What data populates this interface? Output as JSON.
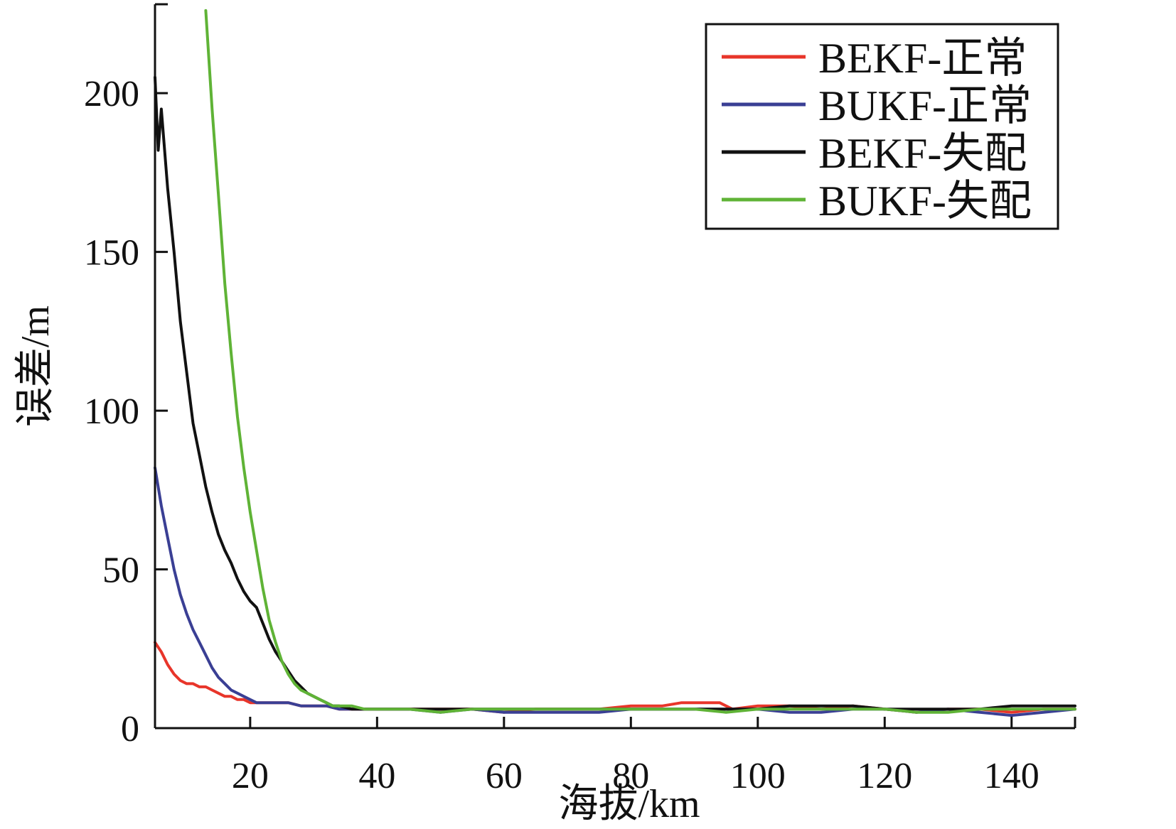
{
  "chart_data": {
    "type": "line",
    "title": "",
    "xlabel": "海拔/km",
    "ylabel": "误差/m",
    "xlim": [
      5,
      150
    ],
    "ylim": [
      0,
      228
    ],
    "x_ticks": [
      20,
      40,
      60,
      80,
      100,
      120,
      140
    ],
    "y_ticks": [
      0,
      50,
      100,
      150,
      200
    ],
    "grid": false,
    "legend_position": "top-right",
    "series": [
      {
        "name": "BEKF-正常",
        "color": "#e8352a",
        "x": [
          5,
          6,
          7,
          8,
          9,
          10,
          11,
          12,
          13,
          14,
          15,
          16,
          17,
          18,
          19,
          20,
          21,
          22,
          24,
          26,
          28,
          30,
          32,
          34,
          36,
          38,
          40,
          45,
          50,
          55,
          60,
          65,
          70,
          75,
          80,
          85,
          88,
          90,
          92,
          94,
          96,
          100,
          105,
          110,
          115,
          120,
          125,
          130,
          135,
          140,
          145,
          150
        ],
        "y": [
          27,
          24,
          20,
          17,
          15,
          14,
          14,
          13,
          13,
          12,
          11,
          10,
          10,
          9,
          9,
          8,
          8,
          8,
          8,
          8,
          7,
          7,
          7,
          6,
          6,
          6,
          6,
          6,
          6,
          6,
          5,
          6,
          6,
          6,
          7,
          7,
          8,
          8,
          8,
          8,
          6,
          7,
          7,
          6,
          7,
          6,
          5,
          6,
          6,
          5,
          6,
          6
        ]
      },
      {
        "name": "BUKF-正常",
        "color": "#3a3f94",
        "x": [
          5,
          6,
          7,
          8,
          9,
          10,
          11,
          12,
          13,
          14,
          15,
          16,
          17,
          18,
          19,
          20,
          21,
          22,
          24,
          26,
          28,
          30,
          32,
          34,
          36,
          38,
          40,
          45,
          50,
          55,
          60,
          65,
          70,
          75,
          80,
          85,
          90,
          95,
          100,
          105,
          110,
          115,
          120,
          125,
          130,
          135,
          140,
          145,
          150
        ],
        "y": [
          82,
          70,
          60,
          50,
          42,
          36,
          31,
          27,
          23,
          19,
          16,
          14,
          12,
          11,
          10,
          9,
          8,
          8,
          8,
          8,
          7,
          7,
          7,
          6,
          6,
          6,
          6,
          6,
          5,
          6,
          5,
          5,
          5,
          5,
          6,
          6,
          6,
          6,
          6,
          5,
          5,
          6,
          6,
          5,
          6,
          5,
          4,
          5,
          6
        ]
      },
      {
        "name": "BEKF-失配",
        "color": "#111111",
        "x": [
          5,
          5.5,
          6,
          7,
          8,
          9,
          10,
          11,
          12,
          13,
          14,
          15,
          16,
          17,
          18,
          19,
          20,
          21,
          22,
          23,
          24,
          25,
          26,
          27,
          28,
          29,
          30,
          31,
          32,
          33,
          34,
          36,
          38,
          40,
          45,
          50,
          55,
          60,
          65,
          70,
          75,
          80,
          85,
          90,
          95,
          100,
          105,
          110,
          115,
          120,
          125,
          130,
          135,
          140,
          145,
          150
        ],
        "y": [
          205,
          182,
          195,
          170,
          150,
          128,
          112,
          96,
          86,
          76,
          68,
          61,
          56,
          52,
          47,
          43,
          40,
          38,
          33,
          28,
          24,
          21,
          18,
          15,
          13,
          11,
          10,
          9,
          8,
          7,
          7,
          6,
          6,
          6,
          6,
          6,
          6,
          6,
          6,
          6,
          6,
          6,
          6,
          6,
          6,
          6,
          7,
          7,
          7,
          6,
          6,
          6,
          6,
          7,
          7,
          7
        ]
      },
      {
        "name": "BUKF-失配",
        "color": "#5fb336",
        "x": [
          13,
          14,
          15,
          16,
          17,
          18,
          19,
          20,
          21,
          22,
          23,
          24,
          25,
          26,
          27,
          28,
          29,
          30,
          31,
          32,
          33,
          34,
          36,
          38,
          40,
          45,
          50,
          55,
          60,
          65,
          70,
          75,
          80,
          85,
          90,
          95,
          100,
          105,
          110,
          115,
          120,
          125,
          130,
          135,
          140,
          145,
          150
        ],
        "y": [
          226,
          195,
          168,
          140,
          118,
          98,
          82,
          68,
          56,
          44,
          34,
          27,
          21,
          17,
          14,
          12,
          11,
          10,
          9,
          8,
          7,
          7,
          7,
          6,
          6,
          6,
          5,
          6,
          6,
          6,
          6,
          6,
          6,
          6,
          6,
          5,
          6,
          6,
          6,
          6,
          6,
          5,
          5,
          6,
          6,
          6,
          6
        ]
      }
    ]
  }
}
